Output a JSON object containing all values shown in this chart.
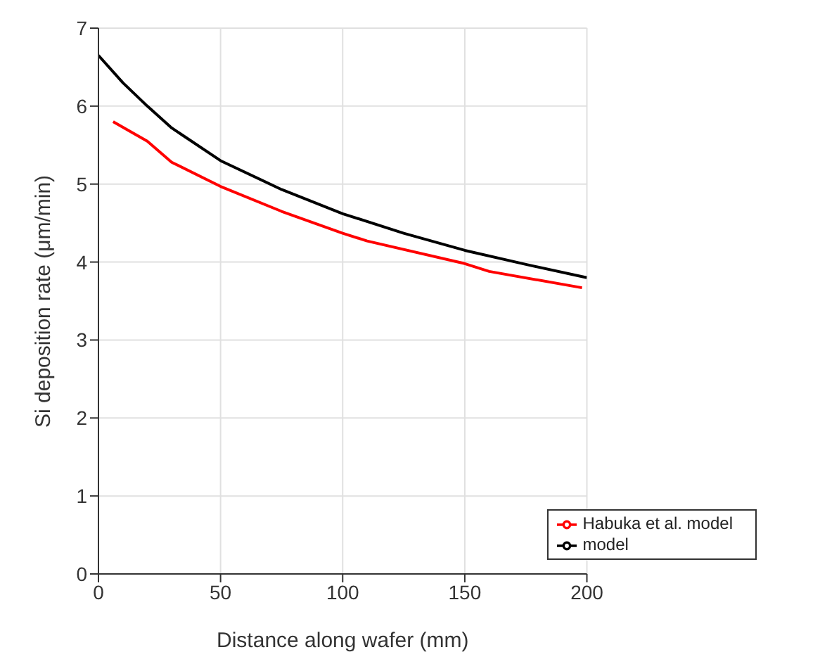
{
  "chart_data": {
    "type": "line",
    "xlabel": "Distance along wafer (mm)",
    "ylabel": "Si deposition rate (μm/min)",
    "xlim": [
      0,
      200
    ],
    "xticks": [
      0,
      50,
      100,
      150,
      200
    ],
    "ylim": [
      0,
      7
    ],
    "yticks": [
      0,
      1,
      2,
      3,
      4,
      5,
      6,
      7
    ],
    "grid": true,
    "legend": "bottom right",
    "marker": "none",
    "line_style": "solid",
    "series": [
      {
        "name": "model",
        "color": "#000000",
        "x": [
          0,
          10,
          20,
          30,
          50,
          75,
          100,
          125,
          150,
          175,
          200
        ],
        "values": [
          6.65,
          6.3,
          6.0,
          5.72,
          5.3,
          4.93,
          4.62,
          4.37,
          4.15,
          3.97,
          3.8
        ]
      },
      {
        "name": "Habuka et al. model",
        "color": "#ff0000",
        "x": [
          6,
          20,
          30,
          50,
          75,
          100,
          110,
          150,
          160,
          198
        ],
        "values": [
          5.8,
          5.55,
          5.28,
          4.97,
          4.65,
          4.37,
          4.27,
          3.98,
          3.88,
          3.67
        ]
      }
    ]
  }
}
